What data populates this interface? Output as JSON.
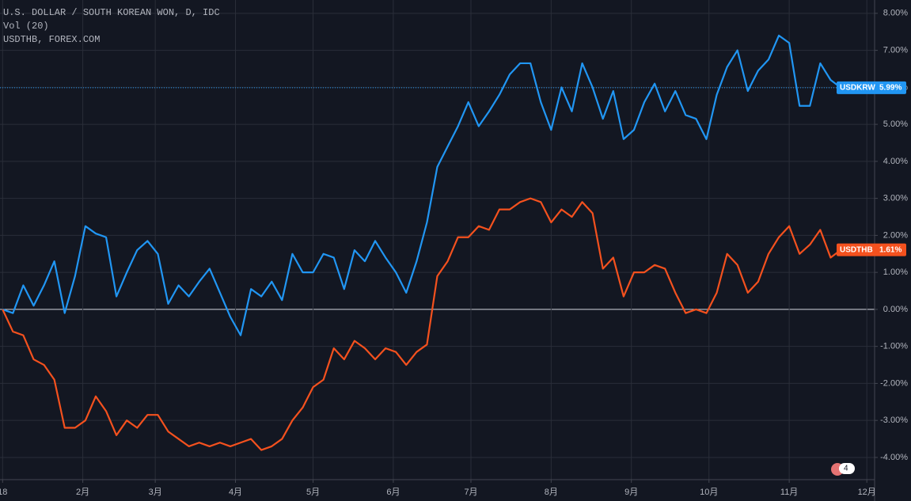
{
  "chart_data": {
    "type": "line",
    "title": "U.S. DOLLAR / SOUTH KOREAN WON, D, IDC",
    "subtitle": "Vol (20)",
    "compare_label": "USDTHB, FOREX.COM",
    "badge": "4",
    "x": [
      0,
      4,
      8,
      12,
      16,
      20,
      24,
      28,
      32,
      36,
      40,
      44,
      48,
      52,
      56,
      60,
      64,
      68,
      72,
      76,
      80,
      84,
      88,
      92,
      96,
      100,
      104,
      108,
      112,
      116,
      120,
      124,
      128,
      132,
      136,
      140,
      144,
      148,
      152,
      156,
      160,
      164,
      168,
      172,
      176,
      180,
      184,
      188,
      192,
      196,
      200,
      204,
      208,
      212,
      216,
      220,
      224,
      228,
      232,
      236,
      240,
      244,
      248,
      252,
      256,
      260,
      264,
      268,
      272,
      276,
      280,
      284,
      288,
      292,
      296,
      300,
      304,
      308,
      312,
      316,
      320,
      324
    ],
    "xlim": [
      -1,
      337
    ],
    "xticks": [
      {
        "value": 0,
        "label": "18"
      },
      {
        "value": 31,
        "label": "2月"
      },
      {
        "value": 59,
        "label": "3月"
      },
      {
        "value": 90,
        "label": "4月"
      },
      {
        "value": 120,
        "label": "5月"
      },
      {
        "value": 151,
        "label": "6月"
      },
      {
        "value": 181,
        "label": "7月"
      },
      {
        "value": 212,
        "label": "8月"
      },
      {
        "value": 243,
        "label": "9月"
      },
      {
        "value": 273,
        "label": "10月"
      },
      {
        "value": 304,
        "label": "11月"
      },
      {
        "value": 334,
        "label": "12月"
      }
    ],
    "ylim": [
      -4.6,
      8.36
    ],
    "yticks": [
      {
        "value": 8,
        "label": "8.00%"
      },
      {
        "value": 7,
        "label": "7.00%"
      },
      {
        "value": 6,
        "label": "6.00%"
      },
      {
        "value": 5,
        "label": "5.00%"
      },
      {
        "value": 4,
        "label": "4.00%"
      },
      {
        "value": 3,
        "label": "3.00%"
      },
      {
        "value": 2,
        "label": "2.00%"
      },
      {
        "value": 1,
        "label": "1.00%"
      },
      {
        "value": 0,
        "label": "0.00%"
      },
      {
        "value": -1,
        "label": "-1.00%"
      },
      {
        "value": -2,
        "label": "-2.00%"
      },
      {
        "value": -3,
        "label": "-3.00%"
      },
      {
        "value": -4,
        "label": "-4.00%"
      }
    ],
    "grid": true,
    "series": [
      {
        "name": "USDKRW",
        "color": "#2196f3",
        "price_line": true,
        "price_tag": {
          "value": 5.99,
          "label": "5.99%"
        },
        "values": [
          0.0,
          -0.1,
          0.65,
          0.1,
          0.65,
          1.3,
          -0.1,
          0.9,
          2.25,
          2.05,
          1.95,
          0.35,
          1.0,
          1.6,
          1.85,
          1.5,
          0.15,
          0.65,
          0.35,
          0.75,
          1.1,
          0.45,
          -0.2,
          -0.7,
          0.55,
          0.35,
          0.75,
          0.25,
          1.5,
          1.0,
          1.0,
          1.5,
          1.4,
          0.55,
          1.6,
          1.3,
          1.85,
          1.4,
          1.0,
          0.45,
          1.3,
          2.35,
          3.85,
          4.4,
          4.95,
          5.6,
          4.95,
          5.35,
          5.8,
          6.35,
          6.65,
          6.65,
          5.6,
          4.85,
          6.0,
          5.35,
          6.65,
          6.0,
          5.15,
          5.9,
          4.6,
          4.85,
          5.6,
          6.1,
          5.35,
          5.9,
          5.25,
          5.15,
          4.6,
          5.8,
          6.55,
          7.0,
          5.9,
          6.45,
          6.75,
          7.4,
          7.2,
          5.5,
          5.5,
          6.65,
          6.2,
          5.99
        ]
      },
      {
        "name": "USDTHB",
        "color": "#f4511e",
        "price_line": false,
        "price_tag": {
          "value": 1.61,
          "label": "1.61%"
        },
        "values": [
          0.0,
          -0.6,
          -0.7,
          -1.35,
          -1.5,
          -1.9,
          -3.2,
          -3.2,
          -3.0,
          -2.35,
          -2.75,
          -3.4,
          -3.0,
          -3.2,
          -2.85,
          -2.85,
          -3.3,
          -3.5,
          -3.7,
          -3.6,
          -3.7,
          -3.6,
          -3.7,
          -3.6,
          -3.5,
          -3.8,
          -3.7,
          -3.5,
          -3.0,
          -2.65,
          -2.1,
          -1.9,
          -1.05,
          -1.35,
          -0.85,
          -1.05,
          -1.35,
          -1.05,
          -1.15,
          -1.5,
          -1.15,
          -0.95,
          0.9,
          1.3,
          1.95,
          1.95,
          2.25,
          2.15,
          2.7,
          2.7,
          2.9,
          3.0,
          2.9,
          2.35,
          2.7,
          2.5,
          2.9,
          2.6,
          1.1,
          1.4,
          0.35,
          1.0,
          1.0,
          1.2,
          1.1,
          0.45,
          -0.1,
          0.0,
          -0.1,
          0.45,
          1.5,
          1.2,
          0.45,
          0.75,
          1.5,
          1.95,
          2.25,
          1.5,
          1.75,
          2.15,
          1.4,
          1.61
        ]
      }
    ]
  }
}
